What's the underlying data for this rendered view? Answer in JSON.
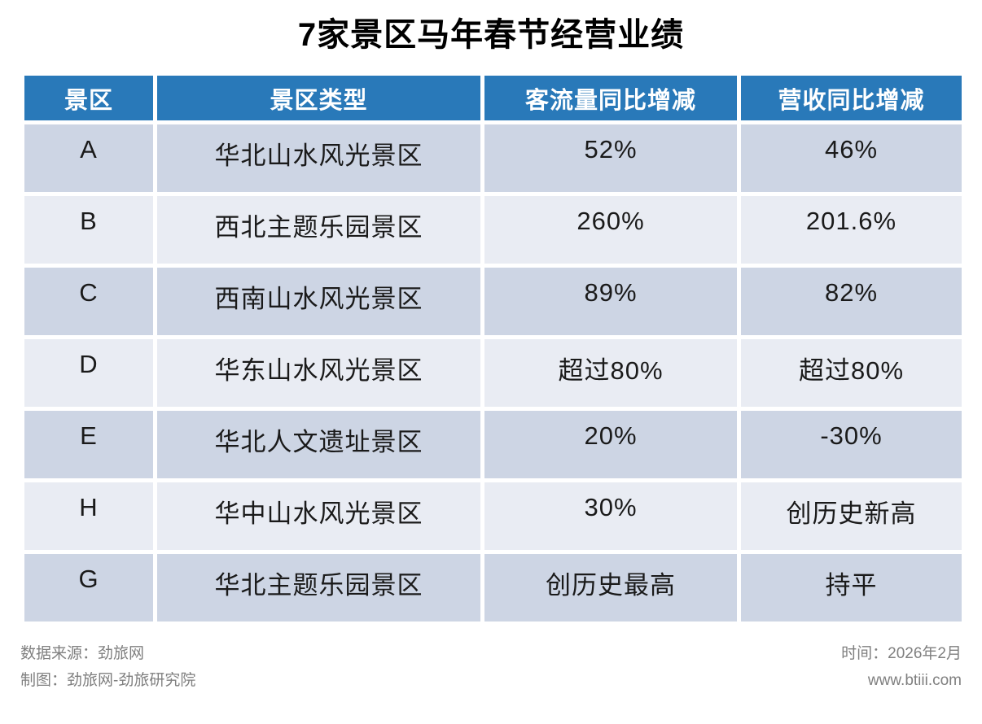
{
  "title": "7家景区马年春节经营业绩",
  "table": {
    "headers": [
      "景区",
      "景区类型",
      "客流量同比增减",
      "营收同比增减"
    ],
    "rows": [
      [
        "A",
        "华北山水风光景区",
        "52%",
        "46%"
      ],
      [
        "B",
        "西北主题乐园景区",
        "260%",
        "201.6%"
      ],
      [
        "C",
        "西南山水风光景区",
        "89%",
        "82%"
      ],
      [
        "D",
        "华东山水风光景区",
        "超过80%",
        "超过80%"
      ],
      [
        "E",
        "华北人文遗址景区",
        "20%",
        "-30%"
      ],
      [
        "H",
        "华中山水风光景区",
        "30%",
        "创历史新高"
      ],
      [
        "G",
        "华北主题乐园景区",
        "创历史最高",
        "持平"
      ]
    ]
  },
  "footer": {
    "source": "数据来源：劲旅网",
    "credit": "制图：劲旅网-劲旅研究院",
    "time": "时间：2026年2月",
    "website": "www.btiii.com"
  },
  "colors": {
    "header_bg": "#2979B9",
    "row_dark": "#CDD5E4",
    "row_light": "#E9ECF3",
    "footer_text": "#7F7F7F"
  },
  "chart_data": {
    "type": "table",
    "title": "7家景区马年春节经营业绩",
    "columns": [
      "景区",
      "景区类型",
      "客流量同比增减",
      "营收同比增减"
    ],
    "rows": [
      {
        "景区": "A",
        "景区类型": "华北山水风光景区",
        "客流量同比增减": "52%",
        "营收同比增减": "46%"
      },
      {
        "景区": "B",
        "景区类型": "西北主题乐园景区",
        "客流量同比增减": "260%",
        "营收同比增减": "201.6%"
      },
      {
        "景区": "C",
        "景区类型": "西南山水风光景区",
        "客流量同比增减": "89%",
        "营收同比增减": "82%"
      },
      {
        "景区": "D",
        "景区类型": "华东山水风光景区",
        "客流量同比增减": "超过80%",
        "营收同比增减": "超过80%"
      },
      {
        "景区": "E",
        "景区类型": "华北人文遗址景区",
        "客流量同比增减": "20%",
        "营收同比增减": "-30%"
      },
      {
        "景区": "H",
        "景区类型": "华中山水风光景区",
        "客流量同比增减": "30%",
        "营收同比增减": "创历史新高"
      },
      {
        "景区": "G",
        "景区类型": "华北主题乐园景区",
        "客流量同比增减": "创历史最高",
        "营收同比增减": "持平"
      }
    ],
    "notes": [
      "数据来源：劲旅网",
      "制图：劲旅网-劲旅研究院",
      "时间：2026年2月",
      "www.btiii.com"
    ]
  }
}
